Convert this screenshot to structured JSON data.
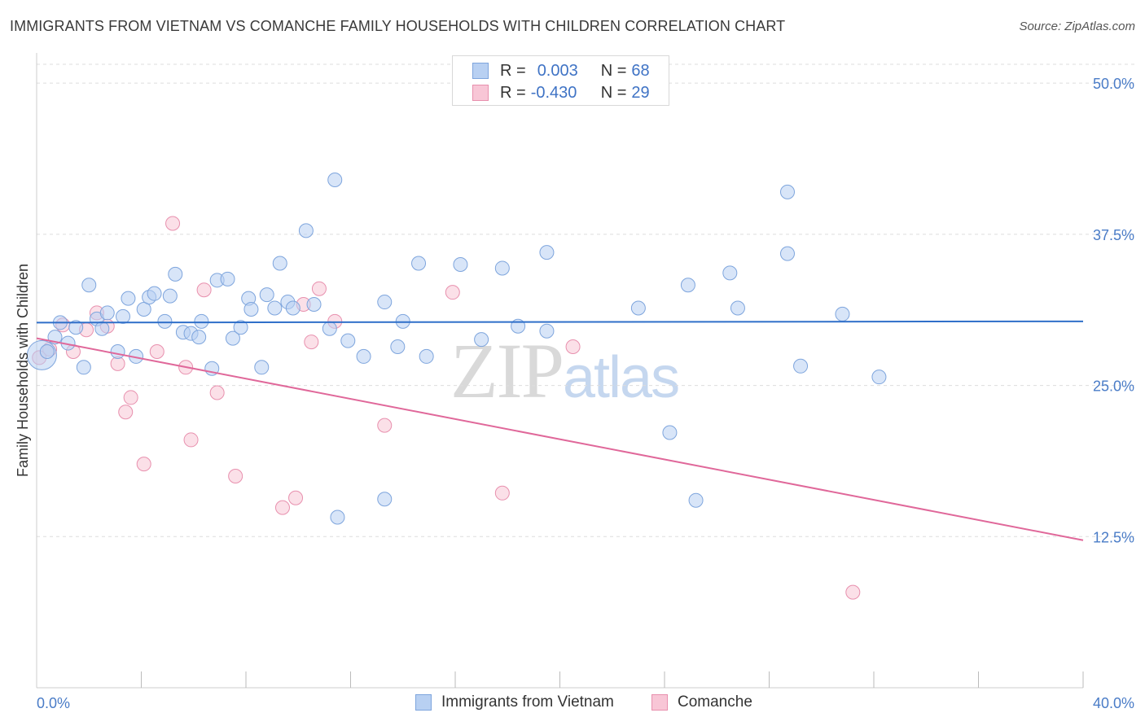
{
  "title": "IMMIGRANTS FROM VIETNAM VS COMANCHE FAMILY HOUSEHOLDS WITH CHILDREN CORRELATION CHART",
  "source": "Source: ZipAtlas.com",
  "watermark": {
    "zip": "ZIP",
    "atlas": "atlas"
  },
  "legend": {
    "r_label": "R =",
    "n_label": "N =",
    "rows": [
      {
        "r": "0.003",
        "n": "68"
      },
      {
        "r": "-0.430",
        "n": "29"
      }
    ]
  },
  "bottom_legend": [
    "Immigrants from Vietnam",
    "Comanche"
  ],
  "colors": {
    "series1_fill": "#b8d0f2",
    "series1_stroke": "#7ea5dd",
    "series1_line": "#2f6fc9",
    "series2_fill": "#f8c6d6",
    "series2_stroke": "#e890ae",
    "series2_line": "#e0689a",
    "grid": "#dddddd",
    "axis_text": "#4a7cc7"
  },
  "chart_data": {
    "type": "scatter",
    "title": "IMMIGRANTS FROM VIETNAM VS COMANCHE FAMILY HOUSEHOLDS WITH CHILDREN CORRELATION CHART",
    "xlabel": "",
    "ylabel": "Family Households with Children",
    "xlim": [
      0,
      40
    ],
    "ylim": [
      0,
      52.5
    ],
    "x_tick_labels": [
      "0.0%",
      "40.0%"
    ],
    "y_ticks": [
      12.5,
      25.0,
      37.5,
      50.0
    ],
    "y_tick_labels": [
      "12.5%",
      "25.0%",
      "37.5%",
      "50.0%"
    ],
    "grid": true,
    "legend_position": "top-center",
    "series": [
      {
        "name": "Immigrants from Vietnam",
        "r": 0.003,
        "n": 68,
        "trend": [
          [
            0,
            30.2
          ],
          [
            40,
            30.3
          ]
        ],
        "points": [
          [
            0.2,
            27.5
          ],
          [
            0.4,
            27.8
          ],
          [
            0.7,
            29.0
          ],
          [
            0.9,
            30.2
          ],
          [
            1.2,
            28.5
          ],
          [
            1.5,
            29.8
          ],
          [
            1.8,
            26.5
          ],
          [
            2.0,
            33.3
          ],
          [
            2.3,
            30.5
          ],
          [
            2.5,
            29.7
          ],
          [
            2.7,
            31.0
          ],
          [
            3.1,
            27.8
          ],
          [
            3.3,
            30.7
          ],
          [
            3.5,
            32.2
          ],
          [
            3.8,
            27.4
          ],
          [
            4.1,
            31.3
          ],
          [
            4.3,
            32.3
          ],
          [
            4.5,
            32.6
          ],
          [
            4.9,
            30.3
          ],
          [
            5.1,
            32.4
          ],
          [
            5.3,
            34.2
          ],
          [
            5.6,
            29.4
          ],
          [
            5.9,
            29.3
          ],
          [
            6.2,
            29.0
          ],
          [
            6.3,
            30.3
          ],
          [
            6.7,
            26.4
          ],
          [
            6.9,
            33.7
          ],
          [
            7.3,
            33.8
          ],
          [
            7.5,
            28.9
          ],
          [
            7.8,
            29.8
          ],
          [
            8.1,
            32.2
          ],
          [
            8.2,
            31.3
          ],
          [
            8.6,
            26.5
          ],
          [
            8.8,
            32.5
          ],
          [
            9.1,
            31.4
          ],
          [
            9.3,
            35.1
          ],
          [
            9.6,
            31.9
          ],
          [
            9.8,
            31.4
          ],
          [
            10.3,
            37.8
          ],
          [
            10.6,
            31.7
          ],
          [
            11.2,
            29.7
          ],
          [
            11.4,
            42.0
          ],
          [
            11.5,
            14.1
          ],
          [
            11.9,
            28.7
          ],
          [
            12.5,
            27.4
          ],
          [
            13.3,
            15.6
          ],
          [
            13.3,
            31.9
          ],
          [
            13.8,
            28.2
          ],
          [
            14.0,
            30.3
          ],
          [
            14.6,
            35.1
          ],
          [
            14.9,
            27.4
          ],
          [
            16.2,
            35.0
          ],
          [
            17.0,
            28.8
          ],
          [
            17.8,
            34.7
          ],
          [
            18.4,
            29.9
          ],
          [
            19.5,
            36.0
          ],
          [
            19.5,
            29.5
          ],
          [
            23.0,
            31.4
          ],
          [
            24.2,
            21.1
          ],
          [
            24.9,
            33.3
          ],
          [
            25.2,
            15.5
          ],
          [
            26.5,
            34.3
          ],
          [
            26.8,
            31.4
          ],
          [
            28.7,
            41.0
          ],
          [
            28.7,
            35.9
          ],
          [
            29.2,
            26.6
          ],
          [
            30.8,
            30.9
          ],
          [
            32.2,
            25.7
          ]
        ]
      },
      {
        "name": "Comanche",
        "r": -0.43,
        "n": 29,
        "trend": [
          [
            0,
            28.9
          ],
          [
            40,
            12.2
          ]
        ],
        "points": [
          [
            0.1,
            27.3
          ],
          [
            0.5,
            28.0
          ],
          [
            1.0,
            30.0
          ],
          [
            1.4,
            27.8
          ],
          [
            1.9,
            29.6
          ],
          [
            2.3,
            31.0
          ],
          [
            2.7,
            29.9
          ],
          [
            3.1,
            26.8
          ],
          [
            3.4,
            22.8
          ],
          [
            3.6,
            24.0
          ],
          [
            4.1,
            18.5
          ],
          [
            4.6,
            27.8
          ],
          [
            5.2,
            38.4
          ],
          [
            5.7,
            26.5
          ],
          [
            5.9,
            20.5
          ],
          [
            6.4,
            32.9
          ],
          [
            6.9,
            24.4
          ],
          [
            7.6,
            17.5
          ],
          [
            9.4,
            14.9
          ],
          [
            9.9,
            15.7
          ],
          [
            10.2,
            31.7
          ],
          [
            10.5,
            28.6
          ],
          [
            10.8,
            33.0
          ],
          [
            11.4,
            30.3
          ],
          [
            13.3,
            21.7
          ],
          [
            15.9,
            32.7
          ],
          [
            17.8,
            16.1
          ],
          [
            20.5,
            28.2
          ],
          [
            31.2,
            7.9
          ]
        ]
      }
    ]
  }
}
